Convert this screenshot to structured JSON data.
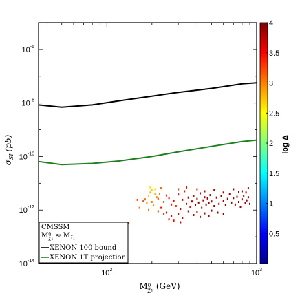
{
  "chart_data": {
    "type": "scatter",
    "title": "",
    "xlabel": "M",
    "xlabel_sub": "χ̃",
    "xlabel_sub_sup": "0",
    "xlabel_sub_index": "1",
    "xlabel_unit": "(GeV)",
    "ylabel": "σ",
    "ylabel_sub": "SI",
    "ylabel_unit": "(pb)",
    "x_scale": "log",
    "y_scale": "log",
    "xlim": [
      35,
      1000
    ],
    "ylim": [
      1e-14,
      1e-05
    ],
    "x_ticks": [
      {
        "value": 100,
        "base": "10",
        "exp": "2"
      },
      {
        "value": 1000,
        "base": "10",
        "exp": "3"
      }
    ],
    "y_ticks": [
      {
        "value": 1e-06,
        "base": "10",
        "exp": "-6"
      },
      {
        "value": 1e-08,
        "base": "10",
        "exp": "-8"
      },
      {
        "value": 1e-10,
        "base": "10",
        "exp": "-10"
      },
      {
        "value": 1e-12,
        "base": "10",
        "exp": "-12"
      },
      {
        "value": 1e-14,
        "base": "10",
        "exp": "-14"
      }
    ],
    "colorbar": {
      "label": "log Δ",
      "range": [
        0,
        4
      ],
      "ticks": [
        "0.5",
        "1",
        "1.5",
        "2",
        "2.5",
        "3",
        "3.5",
        "4"
      ],
      "tick_values": [
        0.5,
        1,
        1.5,
        2,
        2.5,
        3,
        3.5,
        4
      ]
    },
    "series": [
      {
        "name": "XENON 100 bound",
        "kind": "line",
        "color": "#000000",
        "x": [
          35,
          50,
          80,
          120,
          200,
          300,
          500,
          800,
          1000
        ],
        "y": [
          8.5e-09,
          7e-09,
          8.5e-09,
          1.2e-08,
          1.8e-08,
          2.5e-08,
          3.5e-08,
          5.2e-08,
          5.7e-08
        ]
      },
      {
        "name": "XENON 1T projection",
        "kind": "line",
        "color": "#1e7f1e",
        "x": [
          35,
          50,
          80,
          120,
          200,
          300,
          500,
          800,
          1000
        ],
        "y": [
          6.5e-11,
          5e-11,
          5.5e-11,
          6.8e-11,
          1e-10,
          1.5e-10,
          2.4e-10,
          3.6e-10,
          4.1e-10
        ]
      }
    ],
    "scatter_region": {
      "points": [
        [
          190,
          3.2e-12,
          2.7
        ],
        [
          195,
          4.5e-12,
          2.8
        ],
        [
          200,
          2e-12,
          3.0
        ],
        [
          205,
          1.5e-12,
          2.9
        ],
        [
          210,
          6e-12,
          2.6
        ],
        [
          215,
          3e-12,
          3.0
        ],
        [
          180,
          2.5e-12,
          3.1
        ],
        [
          185,
          1.8e-12,
          3.0
        ],
        [
          175,
          2.2e-12,
          3.2
        ],
        [
          220,
          2.6e-12,
          3.3
        ],
        [
          225,
          4e-12,
          3.0
        ],
        [
          230,
          1.2e-12,
          3.4
        ],
        [
          240,
          2e-12,
          3.2
        ],
        [
          250,
          3.5e-12,
          3.3
        ],
        [
          260,
          2.8e-12,
          3.5
        ],
        [
          270,
          1.6e-12,
          3.4
        ],
        [
          280,
          2.2e-12,
          3.6
        ],
        [
          290,
          1.4e-12,
          3.3
        ],
        [
          300,
          3.8e-12,
          3.5
        ],
        [
          310,
          1.1e-12,
          3.7
        ],
        [
          320,
          2.4e-12,
          3.6
        ],
        [
          330,
          5e-12,
          3.4
        ],
        [
          340,
          1.7e-12,
          3.7
        ],
        [
          350,
          2.9e-12,
          3.8
        ],
        [
          360,
          1.3e-12,
          3.6
        ],
        [
          370,
          2.1e-12,
          3.8
        ],
        [
          380,
          3.3e-12,
          3.7
        ],
        [
          390,
          1.5e-12,
          3.9
        ],
        [
          400,
          2.6e-12,
          3.8
        ],
        [
          410,
          1.9e-12,
          3.9
        ],
        [
          420,
          4.2e-12,
          3.7
        ],
        [
          430,
          1.2e-12,
          3.9
        ],
        [
          440,
          2.3e-12,
          3.9
        ],
        [
          450,
          3e-12,
          3.8
        ],
        [
          460,
          1.6e-12,
          3.9
        ],
        [
          470,
          2.7e-12,
          3.9
        ],
        [
          480,
          1.8e-12,
          3.9
        ],
        [
          490,
          3.6e-12,
          3.8
        ],
        [
          500,
          2.1e-12,
          3.9
        ],
        [
          520,
          1.4e-12,
          3.9
        ],
        [
          540,
          2.9e-12,
          3.9
        ],
        [
          560,
          1.7e-12,
          3.9
        ],
        [
          580,
          3.3e-12,
          3.9
        ],
        [
          600,
          2.2e-12,
          3.9
        ],
        [
          620,
          1.5e-12,
          3.9
        ],
        [
          640,
          2.6e-12,
          3.9
        ],
        [
          660,
          3.9e-12,
          3.9
        ],
        [
          680,
          1.9e-12,
          3.9
        ],
        [
          700,
          2.8e-12,
          3.9
        ],
        [
          720,
          1.6e-12,
          3.9
        ],
        [
          740,
          3.1e-12,
          3.9
        ],
        [
          760,
          2e-12,
          3.9
        ],
        [
          780,
          1.3e-12,
          3.9
        ],
        [
          800,
          2.5e-12,
          3.9
        ],
        [
          820,
          3.4e-12,
          3.9
        ],
        [
          840,
          1.8e-12,
          3.9
        ],
        [
          860,
          2.3e-12,
          3.9
        ],
        [
          880,
          3e-12,
          3.9
        ],
        [
          900,
          1.7e-12,
          3.9
        ],
        [
          250,
          8e-13,
          3.5
        ],
        [
          270,
          6e-13,
          3.5
        ],
        [
          300,
          7e-13,
          3.6
        ],
        [
          320,
          5e-13,
          3.6
        ],
        [
          350,
          9e-13,
          3.7
        ],
        [
          380,
          6.5e-13,
          3.7
        ],
        [
          400,
          8.5e-13,
          3.8
        ],
        [
          420,
          5.5e-13,
          3.7
        ],
        [
          450,
          7.5e-13,
          3.8
        ],
        [
          480,
          6e-13,
          3.8
        ],
        [
          500,
          9.5e-13,
          3.9
        ],
        [
          550,
          8e-13,
          3.9
        ],
        [
          600,
          7e-13,
          3.9
        ],
        [
          220,
          9e-13,
          3.3
        ],
        [
          240,
          7e-13,
          3.4
        ],
        [
          190,
          1e-12,
          3.0
        ],
        [
          260,
          4.5e-13,
          3.6
        ],
        [
          280,
          4e-13,
          3.5
        ],
        [
          310,
          3.5e-13,
          3.7
        ],
        [
          140,
          3.2e-13,
          3.3
        ],
        [
          160,
          2.4e-12,
          3.2
        ],
        [
          165,
          1.2e-12,
          3.0
        ],
        [
          200,
          5.5e-12,
          2.7
        ],
        [
          195,
          7e-12,
          2.6
        ],
        [
          210,
          4e-12,
          2.8
        ],
        [
          230,
          6.5e-12,
          3.1
        ],
        [
          300,
          6e-12,
          3.3
        ],
        [
          340,
          7e-12,
          3.5
        ],
        [
          400,
          6e-12,
          3.6
        ],
        [
          450,
          5e-12,
          3.7
        ],
        [
          520,
          5.5e-12,
          3.8
        ],
        [
          600,
          4.5e-12,
          3.9
        ],
        [
          700,
          6e-12,
          3.9
        ],
        [
          800,
          5e-12,
          3.9
        ],
        [
          880,
          6.5e-12,
          3.9
        ],
        [
          850,
          4.5e-12,
          3.9
        ],
        [
          760,
          4.8e-12,
          3.9
        ]
      ]
    },
    "legend": {
      "placement": "bottom-left",
      "title_lines": [
        "CMSSM"
      ],
      "condition": {
        "lhs": "M",
        "lhs_sub": "χ̃",
        "lhs_sub_sup": "0",
        "lhs_sub_index": "1",
        "op": "≈",
        "rhs": "M",
        "rhs_sub": "τ̃",
        "rhs_sub_index": "1"
      },
      "entries": [
        "XENON 100 bound",
        "XENON 1T projection"
      ]
    }
  }
}
